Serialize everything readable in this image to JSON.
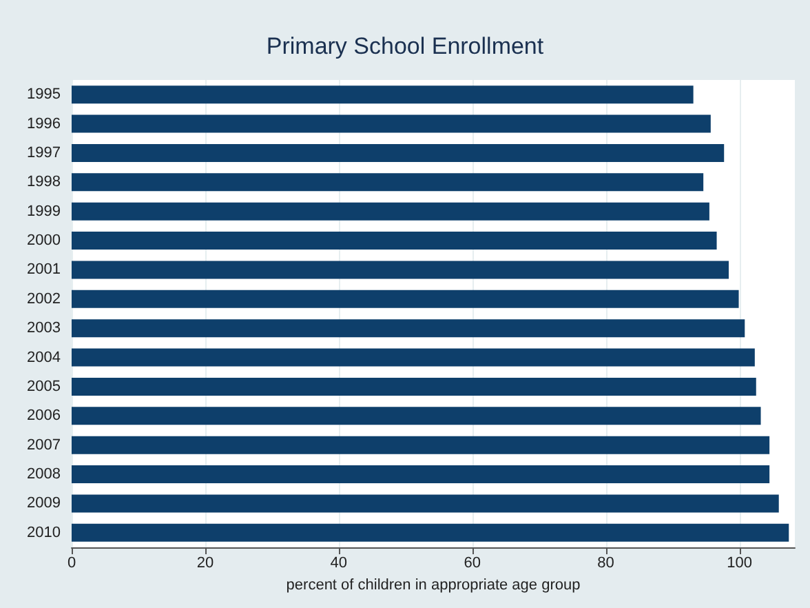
{
  "chart_data": {
    "type": "bar",
    "orientation": "horizontal",
    "title": "Primary School Enrollment",
    "xlabel": "percent of children in appropriate age group",
    "categories": [
      "1995",
      "1996",
      "1997",
      "1998",
      "1999",
      "2000",
      "2001",
      "2002",
      "2003",
      "2004",
      "2005",
      "2006",
      "2007",
      "2008",
      "2009",
      "2010"
    ],
    "values": [
      93.1,
      95.7,
      97.7,
      94.6,
      95.5,
      96.6,
      98.4,
      99.9,
      100.8,
      102.3,
      102.5,
      103.2,
      104.5,
      104.5,
      105.9,
      107.4
    ],
    "color": "#0e3f6b",
    "xlim": [
      0,
      108.3
    ],
    "xticks": [
      0,
      20,
      40,
      60,
      80,
      100
    ],
    "grid": "x"
  }
}
